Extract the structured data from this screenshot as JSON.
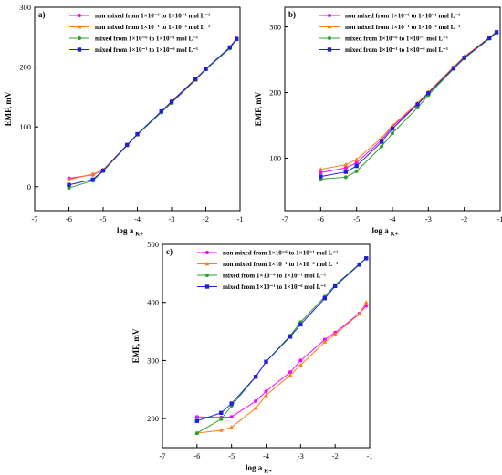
{
  "chart_data": [
    {
      "type": "line",
      "panel_label": "a)",
      "xlabel": "log a",
      "xlabel_sub": "K+",
      "ylabel": "EMF, mV",
      "xlim": [
        -7,
        -1
      ],
      "ylim": [
        -40,
        300
      ],
      "xticks": [
        "-7",
        "-6",
        "-5",
        "-4",
        "-3",
        "-2",
        "-1"
      ],
      "yticks": [
        "0",
        "100",
        "200",
        "300"
      ],
      "xtick_values": [
        -7,
        -6,
        -5,
        -4,
        -3,
        -2,
        -1
      ],
      "ytick_values": [
        0,
        100,
        200,
        300
      ],
      "grid": false,
      "legend_position": "top-left",
      "series": [
        {
          "name": "non mixed from 1×10⁻⁶ to 1×10⁻¹ mol L⁻¹",
          "color": "#ff00ff",
          "marker": "dot",
          "x": [
            -6.0,
            -5.3,
            -5.0,
            -4.3,
            -4.0,
            -3.3,
            -3.0,
            -2.3,
            -2.0,
            -1.3,
            -1.1
          ],
          "y": [
            14,
            20,
            28,
            70,
            88,
            125,
            143,
            180,
            197,
            233,
            248
          ]
        },
        {
          "name": "non mixed from 1×10⁻¹ to 1×10⁻⁶ mol L⁻¹",
          "color": "#ff7f0e",
          "marker": "tri",
          "x": [
            -6.0,
            -5.3,
            -5.0,
            -4.3,
            -4.0,
            -3.3,
            -3.0,
            -2.3,
            -2.0,
            -1.3,
            -1.1
          ],
          "y": [
            12,
            21,
            28,
            70,
            87,
            125,
            140,
            178,
            196,
            232,
            247
          ]
        },
        {
          "name": "mixed from 1×10⁻⁶ to 1×10⁻¹ mol L⁻¹",
          "color": "#2ca02c",
          "marker": "dot",
          "x": [
            -6.0,
            -5.3,
            -5.0,
            -4.3,
            -4.0,
            -3.3,
            -3.0,
            -2.3,
            -2.0,
            -1.3,
            -1.1
          ],
          "y": [
            -2,
            10,
            26,
            69,
            87,
            124,
            140,
            179,
            196,
            231,
            246
          ]
        },
        {
          "name": "mixed from 1×10⁻¹ to 1×10⁻⁶ mol L⁻¹",
          "color": "#1f1fd8",
          "marker": "square",
          "x": [
            -6.0,
            -5.3,
            -5.0,
            -4.3,
            -4.0,
            -3.3,
            -3.0,
            -2.3,
            -2.0,
            -1.3,
            -1.1
          ],
          "y": [
            3,
            12,
            27,
            70,
            88,
            126,
            142,
            180,
            197,
            233,
            247
          ]
        }
      ]
    },
    {
      "type": "line",
      "panel_label": "b)",
      "xlabel": "log a",
      "xlabel_sub": "K+",
      "ylabel": "EMF, mV",
      "xlim": [
        -7,
        -1
      ],
      "ylim": [
        20,
        330
      ],
      "xticks": [
        "-7",
        "-6",
        "-5",
        "-4",
        "-3",
        "-2",
        "-1"
      ],
      "yticks": [
        "100",
        "200",
        "300"
      ],
      "xtick_values": [
        -7,
        -6,
        -5,
        -4,
        -3,
        -2,
        -1
      ],
      "ytick_values": [
        100,
        200,
        300
      ],
      "grid": false,
      "legend_position": "top-left",
      "series": [
        {
          "name": "non mixed from 1×10⁻⁶ to 1×10⁻¹ mol L⁻¹",
          "color": "#ff00ff",
          "marker": "dot",
          "x": [
            -6.0,
            -5.3,
            -5.0,
            -4.3,
            -4.0,
            -3.3,
            -3.0,
            -2.3,
            -2.0,
            -1.3,
            -1.1
          ],
          "y": [
            78,
            85,
            93,
            128,
            148,
            183,
            200,
            238,
            254,
            283,
            292
          ]
        },
        {
          "name": "non mixed from 1×10⁻¹ to 1×10⁻⁶ mol L⁻¹",
          "color": "#ff7f0e",
          "marker": "tri",
          "x": [
            -6.0,
            -5.3,
            -5.0,
            -4.3,
            -4.0,
            -3.3,
            -3.0,
            -2.3,
            -2.0,
            -1.3,
            -1.1
          ],
          "y": [
            83,
            90,
            98,
            131,
            150,
            184,
            201,
            239,
            255,
            284,
            293
          ]
        },
        {
          "name": "mixed from 1×10⁻⁶ to 1×10⁻¹ mol L⁻¹",
          "color": "#2ca02c",
          "marker": "dot",
          "x": [
            -6.0,
            -5.3,
            -5.0,
            -4.3,
            -4.0,
            -3.3,
            -3.0,
            -2.3,
            -2.0,
            -1.3,
            -1.1
          ],
          "y": [
            68,
            71,
            80,
            118,
            138,
            177,
            196,
            236,
            252,
            282,
            291
          ]
        },
        {
          "name": "mixed from 1×10⁻¹ to 1×10⁻⁶ mol L⁻¹",
          "color": "#1f1fd8",
          "marker": "square",
          "x": [
            -6.0,
            -5.3,
            -5.0,
            -4.3,
            -4.0,
            -3.3,
            -3.0,
            -2.3,
            -2.0,
            -1.3,
            -1.1
          ],
          "y": [
            72,
            79,
            88,
            125,
            145,
            182,
            199,
            237,
            253,
            283,
            292
          ]
        }
      ]
    },
    {
      "type": "line",
      "panel_label": "c)",
      "xlabel": "log a",
      "xlabel_sub": "K+",
      "ylabel": "EMF, mV",
      "xlim": [
        -7,
        -1
      ],
      "ylim": [
        150,
        500
      ],
      "xticks": [
        "-7",
        "-6",
        "-5",
        "-4",
        "-3",
        "-2",
        "-1"
      ],
      "yticks": [
        "200",
        "300",
        "400",
        "500"
      ],
      "xtick_values": [
        -7,
        -6,
        -5,
        -4,
        -3,
        -2,
        -1
      ],
      "ytick_values": [
        200,
        300,
        400,
        500
      ],
      "grid": false,
      "legend_position": "top-left",
      "series": [
        {
          "name": "non mixed from 1×10⁻⁶ to 1×10⁻¹ mol L⁻¹",
          "color": "#ff00ff",
          "marker": "dot",
          "x": [
            -6.0,
            -5.3,
            -5.0,
            -4.3,
            -4.0,
            -3.3,
            -3.0,
            -2.3,
            -2.0,
            -1.3,
            -1.1
          ],
          "y": [
            203,
            202,
            203,
            230,
            247,
            280,
            300,
            336,
            348,
            381,
            394
          ]
        },
        {
          "name": "non mixed from 1×10⁻¹ to 1×10⁻⁶ mol L⁻¹",
          "color": "#ff7f0e",
          "marker": "tri",
          "x": [
            -6.0,
            -5.3,
            -5.0,
            -4.3,
            -4.0,
            -3.3,
            -3.0,
            -2.3,
            -2.0,
            -1.3,
            -1.1
          ],
          "y": [
            175,
            180,
            185,
            218,
            240,
            275,
            292,
            332,
            345,
            380,
            400
          ]
        },
        {
          "name": "mixed from 1×10⁻⁶ to 1×10⁻¹ mol L⁻¹",
          "color": "#2ca02c",
          "marker": "dot",
          "x": [
            -6.0,
            -5.3,
            -5.0,
            -4.3,
            -4.0,
            -3.3,
            -3.0,
            -2.3,
            -2.0,
            -1.3,
            -1.1
          ],
          "y": [
            175,
            199,
            222,
            272,
            298,
            343,
            366,
            410,
            430,
            466,
            476
          ]
        },
        {
          "name": "mixed from 1×10⁻¹ to 1×10⁻⁶ mol L⁻¹",
          "color": "#1f1fd8",
          "marker": "square",
          "x": [
            -6.0,
            -5.3,
            -5.0,
            -4.3,
            -4.0,
            -3.3,
            -3.0,
            -2.3,
            -2.0,
            -1.3,
            -1.1
          ],
          "y": [
            196,
            210,
            226,
            272,
            298,
            341,
            362,
            407,
            428,
            465,
            476
          ]
        }
      ]
    }
  ]
}
